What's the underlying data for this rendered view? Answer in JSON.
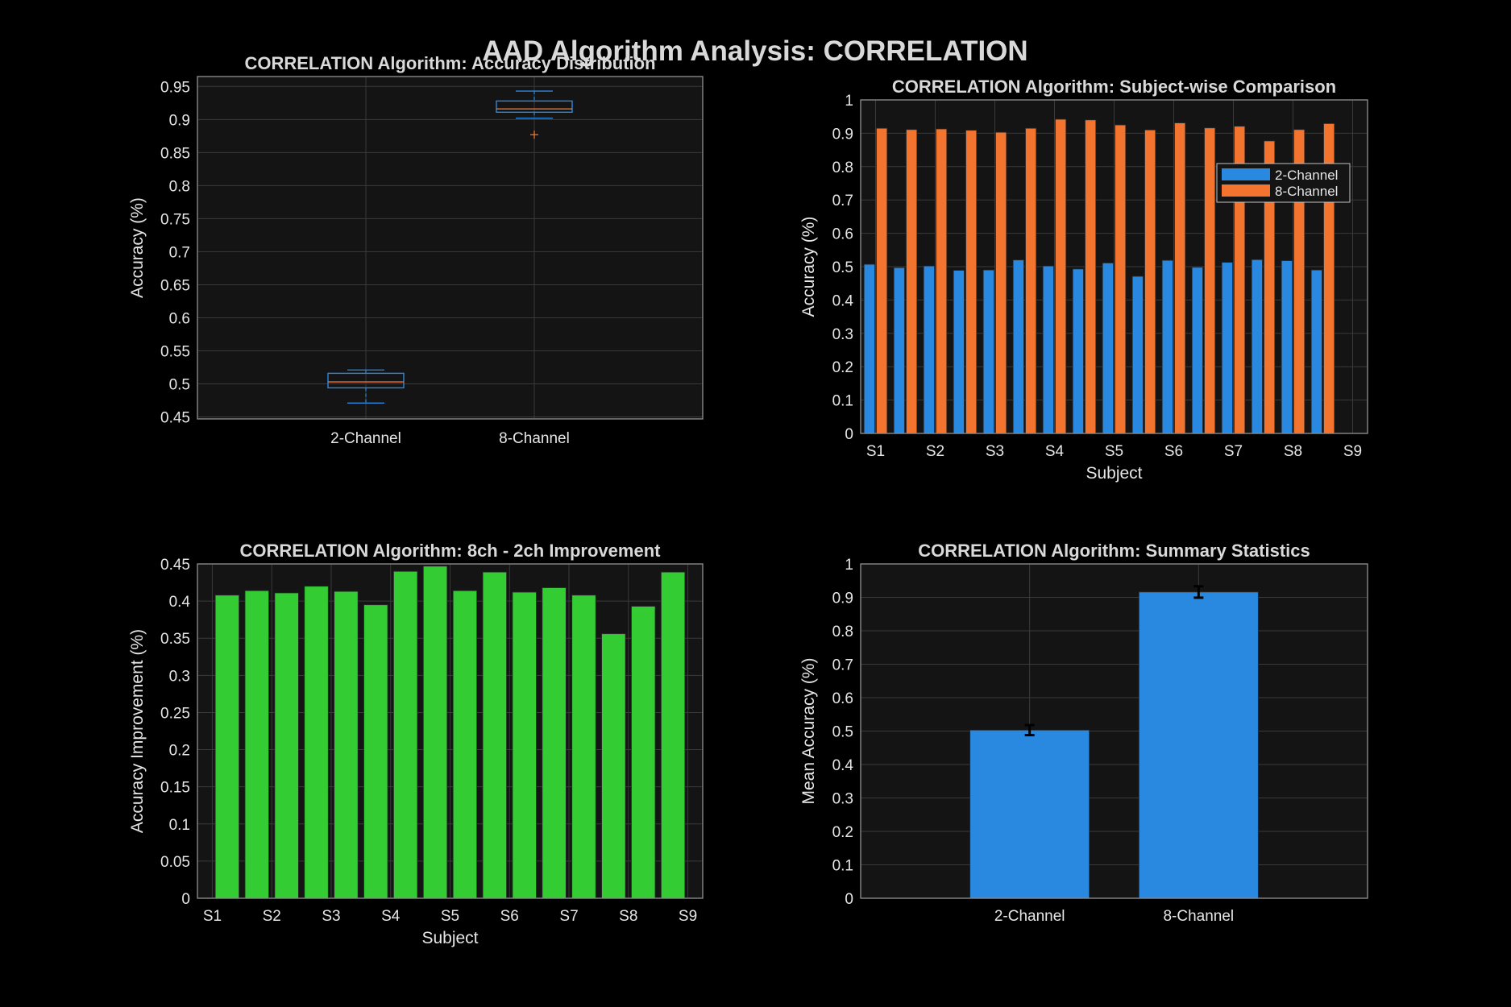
{
  "suptitle": "AAD Algorithm Analysis: CORRELATION",
  "colors": {
    "background": "#000000",
    "axes_bg": "#141414",
    "two_channel": "#2989e0",
    "eight_channel": "#f2742e",
    "improvement": "#33cc33",
    "median": "#f2742e",
    "outlier": "#f2742e",
    "text": "#e6e6e6"
  },
  "chart_data": [
    {
      "type": "box",
      "title": "CORRELATION Algorithm: Accuracy Distribution",
      "xlabel": "",
      "ylabel": "Accuracy (%)",
      "ylim": [
        0.447,
        0.965
      ],
      "yticks": [
        0.45,
        0.5,
        0.55,
        0.6,
        0.65,
        0.7,
        0.75,
        0.8,
        0.85,
        0.9,
        0.95
      ],
      "categories": [
        "2-Channel",
        "8-Channel"
      ],
      "boxes": [
        {
          "name": "2-Channel",
          "min": 0.471,
          "q1": 0.494,
          "median": 0.503,
          "q3": 0.516,
          "max": 0.521,
          "outliers": []
        },
        {
          "name": "8-Channel",
          "min": 0.902,
          "q1": 0.911,
          "median": 0.916,
          "q3": 0.928,
          "max": 0.943,
          "outliers": [
            0.877
          ]
        }
      ],
      "grid": true
    },
    {
      "type": "bar",
      "title": "CORRELATION Algorithm: Subject-wise Comparison",
      "xlabel": "Subject",
      "ylabel": "Accuracy (%)",
      "ylim": [
        0,
        1
      ],
      "yticks": [
        0,
        0.1,
        0.2,
        0.3,
        0.4,
        0.5,
        0.6,
        0.7,
        0.8,
        0.9,
        1
      ],
      "xlim": [
        0.5,
        17.5
      ],
      "xticks": [
        1,
        3,
        5,
        7,
        9,
        11,
        13,
        15,
        17
      ],
      "xticklabels": [
        "S1",
        "S2",
        "S3",
        "S4",
        "S5",
        "S6",
        "S7",
        "S8",
        "S9"
      ],
      "series": [
        {
          "name": "2-Channel",
          "values": [
            0.507,
            0.497,
            0.502,
            0.489,
            0.49,
            0.52,
            0.502,
            0.493,
            0.511,
            0.471,
            0.519,
            0.498,
            0.513,
            0.521,
            0.518,
            0.49
          ]
        },
        {
          "name": "8-Channel",
          "values": [
            0.915,
            0.911,
            0.913,
            0.909,
            0.903,
            0.915,
            0.942,
            0.94,
            0.925,
            0.91,
            0.931,
            0.916,
            0.921,
            0.877,
            0.911,
            0.929
          ]
        }
      ],
      "legend": "top-right",
      "grid": true
    },
    {
      "type": "bar",
      "title": "CORRELATION Algorithm: 8ch - 2ch Improvement",
      "xlabel": "Subject",
      "ylabel": "Accuracy Improvement (%)",
      "ylim": [
        0,
        0.45
      ],
      "yticks": [
        0,
        0.05,
        0.1,
        0.15,
        0.2,
        0.25,
        0.3,
        0.35,
        0.4,
        0.45
      ],
      "xlim": [
        0.5,
        17.5
      ],
      "xticks": [
        1,
        3,
        5,
        7,
        9,
        11,
        13,
        15,
        17
      ],
      "xticklabels": [
        "S1",
        "S2",
        "S3",
        "S4",
        "S5",
        "S6",
        "S7",
        "S8",
        "S9"
      ],
      "values": [
        0.408,
        0.414,
        0.411,
        0.42,
        0.413,
        0.395,
        0.44,
        0.447,
        0.414,
        0.439,
        0.412,
        0.418,
        0.408,
        0.356,
        0.393,
        0.439
      ],
      "grid": true
    },
    {
      "type": "bar",
      "title": "CORRELATION Algorithm: Summary Statistics",
      "xlabel": "",
      "ylabel": "Mean Accuracy (%)",
      "ylim": [
        0,
        1
      ],
      "yticks": [
        0,
        0.1,
        0.2,
        0.3,
        0.4,
        0.5,
        0.6,
        0.7,
        0.8,
        0.9,
        1
      ],
      "categories": [
        "2-Channel",
        "8-Channel"
      ],
      "values": [
        0.503,
        0.916
      ],
      "errors": [
        0.015,
        0.017
      ],
      "grid": true
    }
  ]
}
